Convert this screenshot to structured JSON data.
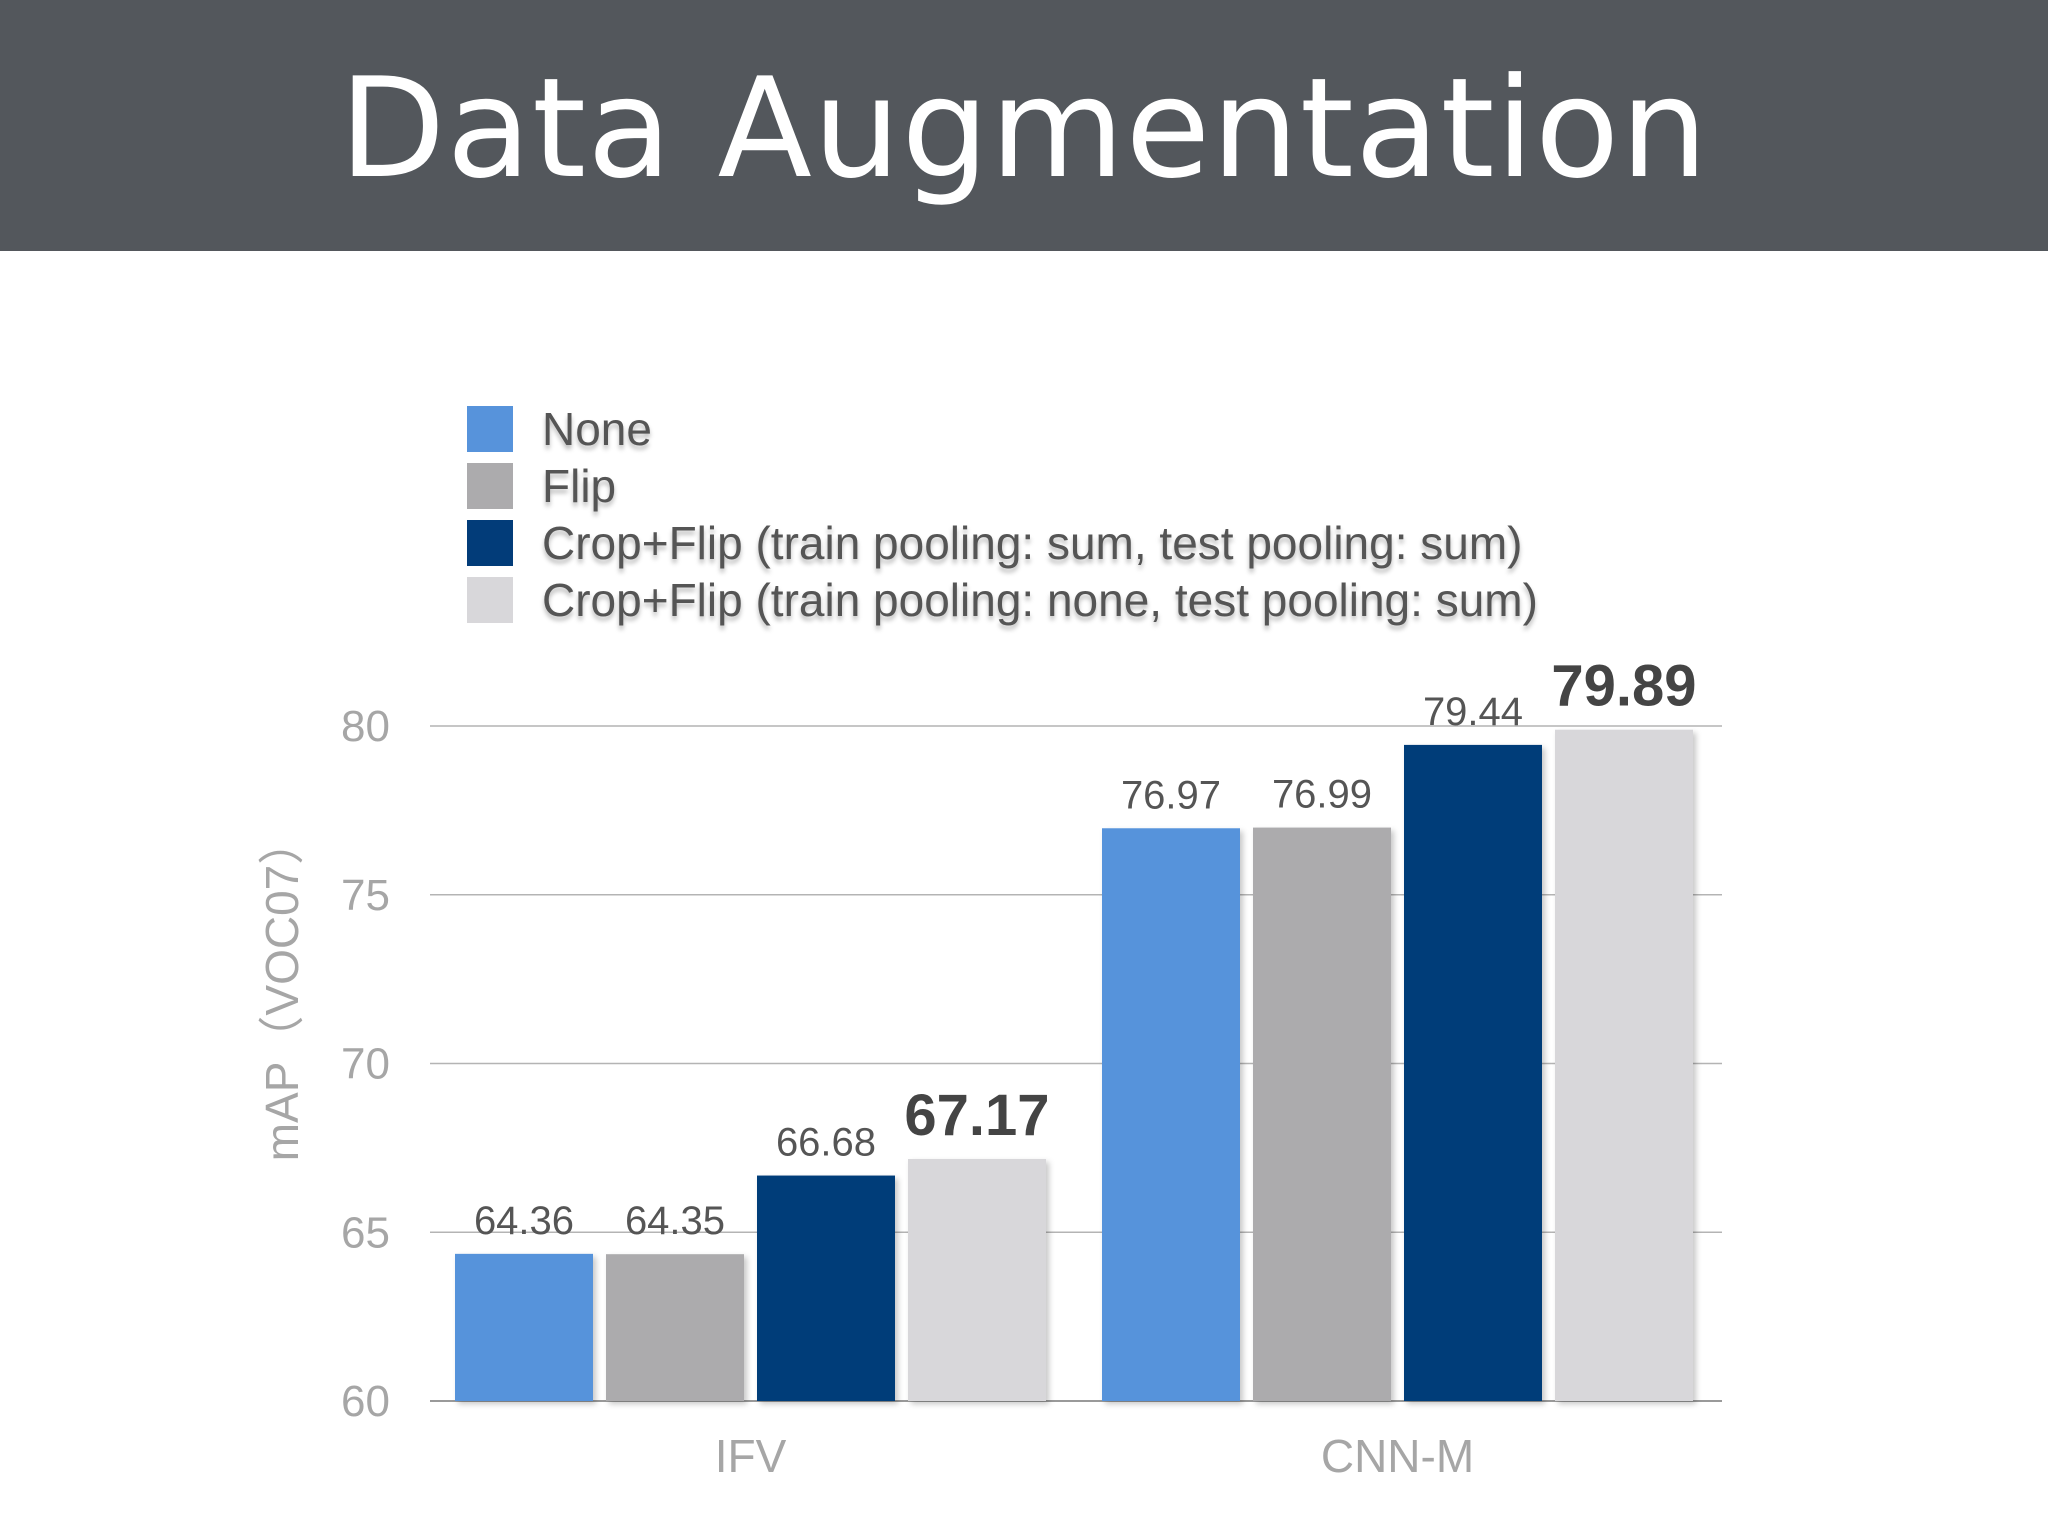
{
  "slide": {
    "title": "Data Augmentation"
  },
  "chart_data": {
    "type": "bar",
    "categories": [
      "IFV",
      "CNN-M"
    ],
    "series": [
      {
        "name": "None",
        "color": "#5793db",
        "values": [
          64.36,
          76.97
        ]
      },
      {
        "name": "Flip",
        "color": "#acabad",
        "values": [
          64.35,
          76.99
        ]
      },
      {
        "name": "Crop+Flip (train pooling: sum, test pooling: sum)",
        "color": "#023c79",
        "values": [
          66.68,
          79.44
        ]
      },
      {
        "name": "Crop+Flip (train pooling: none, test pooling: sum)",
        "color": "#d8d7da",
        "values": [
          67.17,
          79.89
        ]
      }
    ],
    "data_labels": [
      [
        "64.36",
        "76.97"
      ],
      [
        "64.35",
        "76.99"
      ],
      [
        "66.68",
        "79.44"
      ],
      [
        "67.17",
        "79.89"
      ]
    ],
    "ylabel": "mAP（VOC07）",
    "ylim": [
      60,
      80
    ],
    "yticks": [
      60,
      65,
      70,
      75,
      80
    ],
    "ytick_labels": [
      "60",
      "65",
      "70",
      "75",
      "80"
    ],
    "grid": true,
    "legend_position": "top-left"
  }
}
